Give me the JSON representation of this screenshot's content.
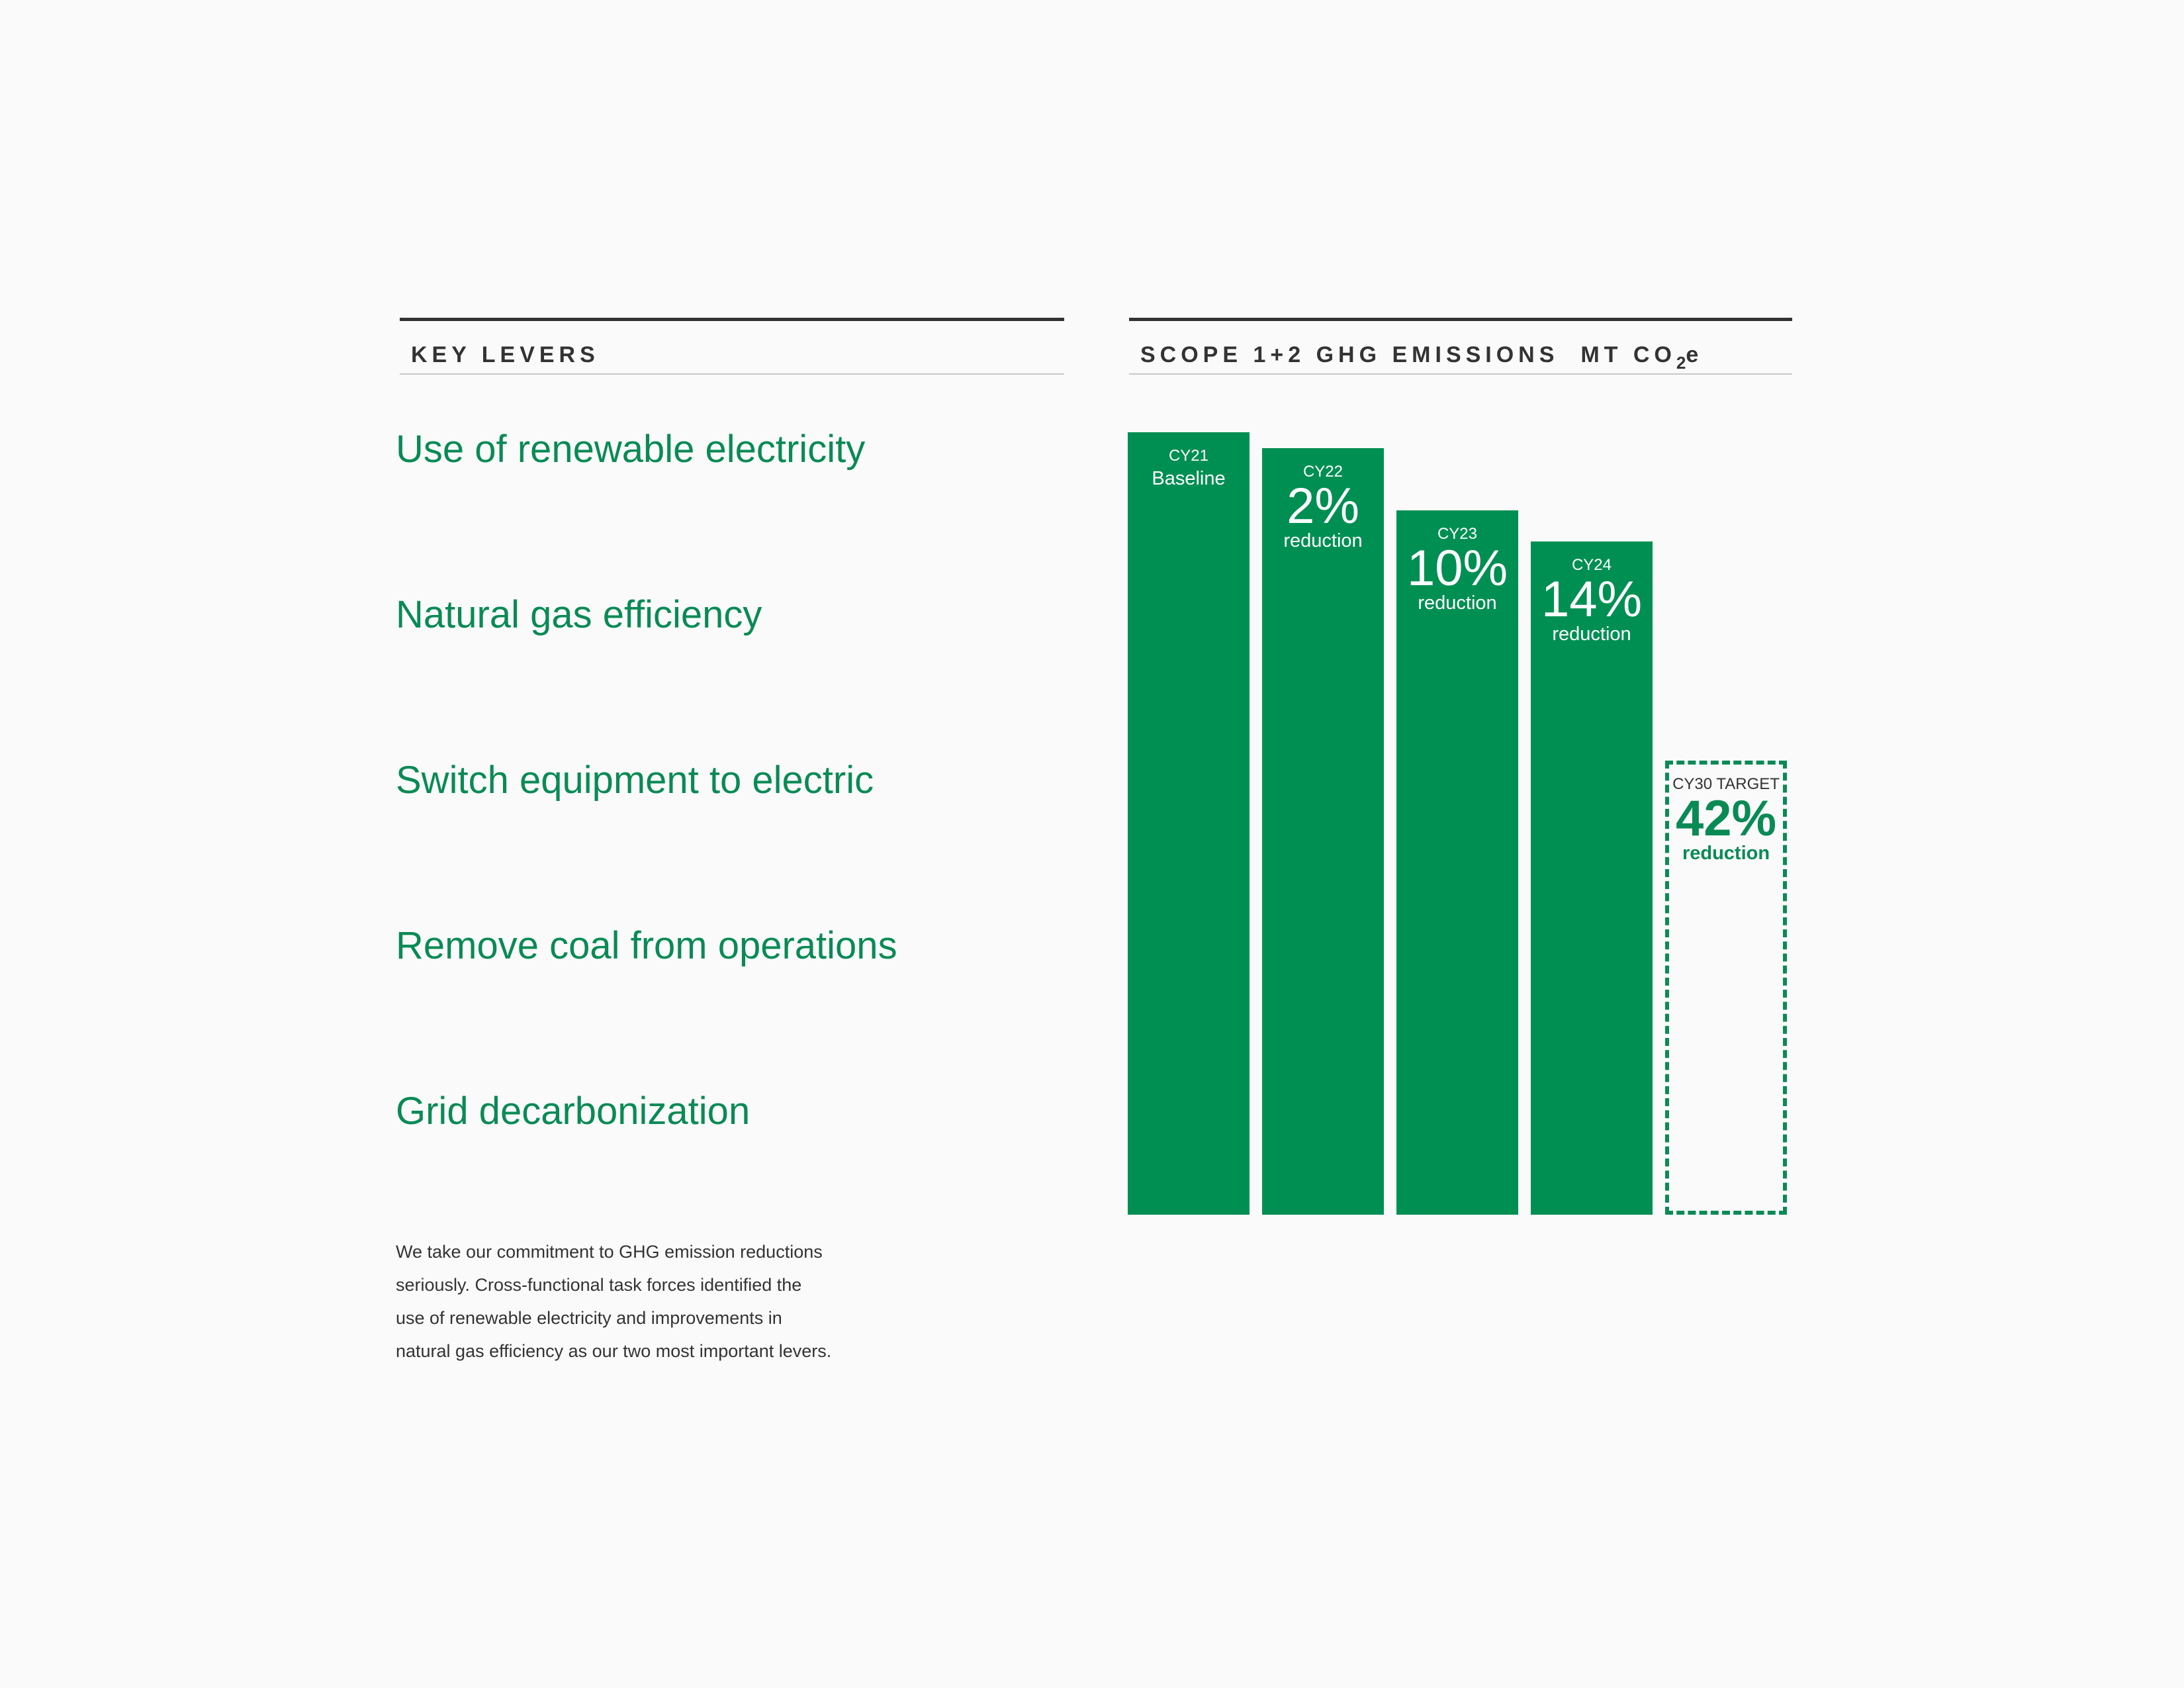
{
  "left_panel": {
    "header": "KEY LEVERS",
    "levers": [
      "Use of renewable electricity",
      "Natural gas efficiency",
      "Switch equipment to electric",
      "Remove coal from operations",
      "Grid decarbonization"
    ],
    "body_lines": [
      "We take our commitment to GHG emission reductions",
      "seriously. Cross-functional task forces identified the",
      "use of renewable electricity and improvements in",
      "natural gas efficiency as our two most important levers."
    ]
  },
  "right_panel": {
    "header_main": "SCOPE 1+2 GHG EMISSIONS",
    "header_unit_a": "MT CO",
    "header_unit_sub": "2",
    "header_unit_b": "e"
  },
  "chart_data": {
    "type": "bar",
    "title": "SCOPE 1+2 GHG EMISSIONS MT CO2e",
    "categories": [
      "CY21",
      "CY22",
      "CY23",
      "CY24",
      "CY30 TARGET"
    ],
    "values": [
      100,
      98,
      90,
      86,
      58
    ],
    "ylim": [
      0,
      100
    ],
    "ylabel": "",
    "xlabel": "",
    "grid": false,
    "bars": [
      {
        "year": "CY21",
        "note": "Baseline",
        "value": 100
      },
      {
        "year": "CY22",
        "pct": "2%",
        "note": "reduction",
        "value": 98
      },
      {
        "year": "CY23",
        "pct": "10%",
        "note": "reduction",
        "value": 90
      },
      {
        "year": "CY24",
        "pct": "14%",
        "note": "reduction",
        "value": 86
      },
      {
        "year": "CY30 TARGET",
        "pct": "42%",
        "note": "reduction",
        "value": 58,
        "target": true
      }
    ],
    "colors": {
      "bar": "#008f53",
      "target_outline": "#0a8a55",
      "lever_text": "#0a8a55"
    }
  }
}
